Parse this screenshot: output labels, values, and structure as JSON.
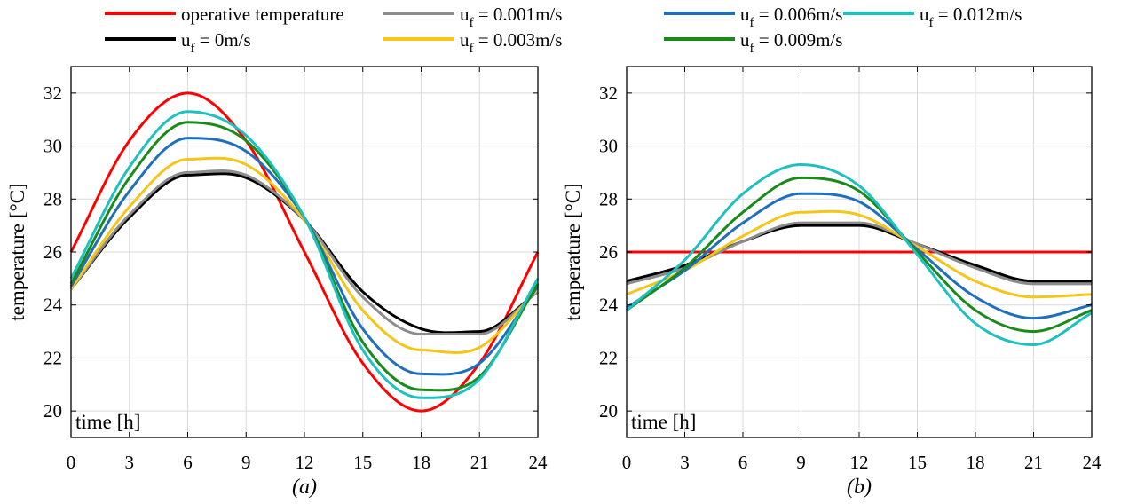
{
  "legend": [
    {
      "text": "operative temperature",
      "color": "#ff0000"
    },
    {
      "text": "u",
      "sub": "f",
      "suffix": " = 0.001m/s",
      "color": "#8c8c8c"
    },
    {
      "text": "u",
      "sub": "f",
      "suffix": " = 0.006m/s",
      "color": "#1f6fbf"
    },
    {
      "text": "u",
      "sub": "f",
      "suffix": " = 0.012m/s",
      "color": "#1fc0c0"
    },
    {
      "text": "u",
      "sub": "f",
      "suffix": " = 0m/s",
      "color": "#000000"
    },
    {
      "text": "u",
      "sub": "f",
      "suffix": " = 0.003m/s",
      "color": "#f5c518"
    },
    {
      "text": "u",
      "sub": "f",
      "suffix": " = 0.009m/s",
      "color": "#1a8a1a"
    }
  ],
  "chart_data": [
    {
      "type": "line",
      "caption": "(a)",
      "xlabel": "time [h]",
      "ylabel": "temperature [°C]",
      "xlim": [
        0,
        24
      ],
      "ylim": [
        19,
        33
      ],
      "xticks": [
        0,
        3,
        6,
        9,
        12,
        15,
        18,
        21,
        24
      ],
      "yticks": [
        20,
        22,
        24,
        26,
        28,
        30,
        32
      ],
      "grid": true,
      "x": [
        0,
        3,
        6,
        9,
        12,
        15,
        18,
        21,
        24
      ],
      "series": [
        {
          "name": "operative temperature",
          "color": "#ff0000",
          "values": [
            26.0,
            30.2,
            32.0,
            30.2,
            26.0,
            21.8,
            20.0,
            21.8,
            26.0
          ]
        },
        {
          "name": "u_f = 0m/s",
          "color": "#000000",
          "values": [
            24.6,
            27.3,
            28.9,
            28.8,
            27.2,
            24.5,
            23.1,
            23.0,
            24.5
          ]
        },
        {
          "name": "u_f = 0.001m/s",
          "color": "#8c8c8c",
          "values": [
            24.6,
            27.4,
            29.0,
            28.9,
            27.2,
            24.3,
            22.9,
            22.9,
            24.5
          ]
        },
        {
          "name": "u_f = 0.003m/s",
          "color": "#f5c518",
          "values": [
            24.6,
            27.7,
            29.5,
            29.3,
            27.2,
            23.8,
            22.3,
            22.4,
            24.6
          ]
        },
        {
          "name": "u_f = 0.006m/s",
          "color": "#1f6fbf",
          "values": [
            24.7,
            28.3,
            30.3,
            29.8,
            27.3,
            23.1,
            21.4,
            21.8,
            24.7
          ]
        },
        {
          "name": "u_f = 0.009m/s",
          "color": "#1a8a1a",
          "values": [
            24.8,
            28.8,
            30.9,
            30.2,
            27.3,
            22.6,
            20.8,
            21.3,
            24.8
          ]
        },
        {
          "name": "u_f = 0.012m/s",
          "color": "#1fc0c0",
          "values": [
            25.0,
            29.2,
            31.3,
            30.4,
            27.3,
            22.3,
            20.5,
            21.2,
            25.0
          ]
        }
      ]
    },
    {
      "type": "line",
      "caption": "(b)",
      "xlabel": "time [h]",
      "ylabel": "temperature [°C]",
      "xlim": [
        0,
        24
      ],
      "ylim": [
        19,
        33
      ],
      "xticks": [
        0,
        3,
        6,
        9,
        12,
        15,
        18,
        21,
        24
      ],
      "yticks": [
        20,
        22,
        24,
        26,
        28,
        30,
        32
      ],
      "grid": true,
      "x": [
        0,
        3,
        6,
        9,
        12,
        15,
        18,
        21,
        24
      ],
      "series": [
        {
          "name": "operative temperature",
          "color": "#ff0000",
          "values": [
            26.0,
            26.0,
            26.0,
            26.0,
            26.0,
            26.0,
            26.0,
            26.0,
            26.0
          ]
        },
        {
          "name": "u_f = 0m/s",
          "color": "#000000",
          "values": [
            24.9,
            25.5,
            26.4,
            27.0,
            27.0,
            26.3,
            25.5,
            24.9,
            24.9
          ]
        },
        {
          "name": "u_f = 0.001m/s",
          "color": "#8c8c8c",
          "values": [
            24.8,
            25.4,
            26.4,
            27.1,
            27.1,
            26.3,
            25.4,
            24.8,
            24.8
          ]
        },
        {
          "name": "u_f = 0.003m/s",
          "color": "#f5c518",
          "values": [
            24.4,
            25.3,
            26.6,
            27.5,
            27.4,
            26.2,
            24.9,
            24.3,
            24.4
          ]
        },
        {
          "name": "u_f = 0.006m/s",
          "color": "#1f6fbf",
          "values": [
            23.9,
            25.3,
            27.1,
            28.2,
            27.9,
            26.1,
            24.3,
            23.5,
            24.0
          ]
        },
        {
          "name": "u_f = 0.009m/s",
          "color": "#1a8a1a",
          "values": [
            23.8,
            25.4,
            27.5,
            28.8,
            28.3,
            26.0,
            23.8,
            23.0,
            23.8
          ]
        },
        {
          "name": "u_f = 0.012m/s",
          "color": "#1fc0c0",
          "values": [
            23.8,
            25.7,
            28.2,
            29.3,
            28.5,
            25.9,
            23.3,
            22.5,
            23.7
          ]
        }
      ]
    }
  ]
}
